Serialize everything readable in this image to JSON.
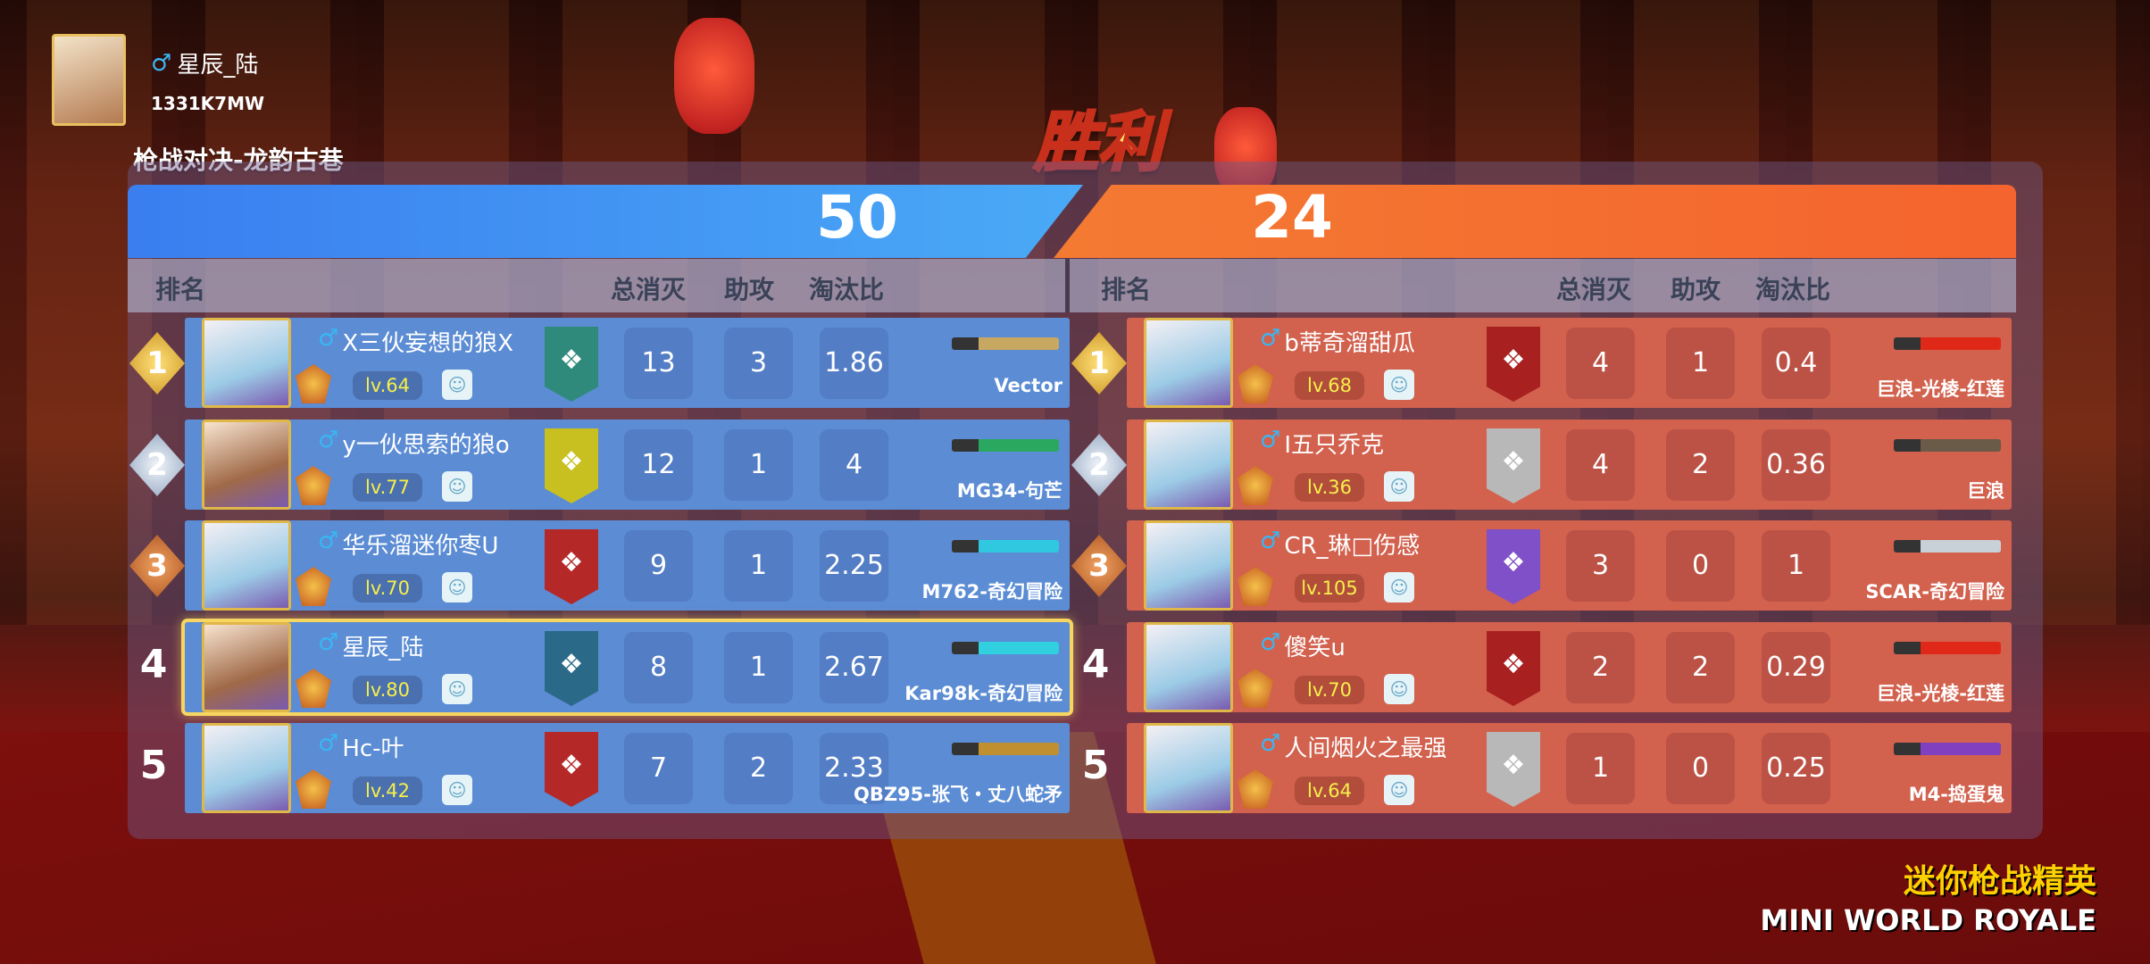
{
  "player": {
    "name": "星辰_陆",
    "gender_icon": "male-icon",
    "id": "1331K7MW"
  },
  "mode": "枪战对决-龙韵古巷",
  "result": "胜利",
  "scores": {
    "blue": "50",
    "orange": "24"
  },
  "headers": {
    "rank": "排名",
    "kills": "总消灭",
    "assists": "助攻",
    "ratio": "淘汰比"
  },
  "colors": {
    "blue_team": "#5b8cd4",
    "red_team": "#d2614e",
    "highlight": "#f6d560",
    "level_text": "#f6f04a"
  },
  "blue_team": [
    {
      "rank": "1",
      "name": "X三伙妄想的狼X",
      "level": "lv.64",
      "kills": "13",
      "assists": "3",
      "ratio": "1.86",
      "weapon": "Vector",
      "emblem_color": "#2f8a7c",
      "gun_color": "#c8a860"
    },
    {
      "rank": "2",
      "name": "y一伙思索的狼o",
      "level": "lv.77",
      "kills": "12",
      "assists": "1",
      "ratio": "4",
      "weapon": "MG34-句芒",
      "emblem_color": "#c8c020",
      "gun_color": "#2aa860"
    },
    {
      "rank": "3",
      "name": "华乐溜迷你枣U",
      "level": "lv.70",
      "kills": "9",
      "assists": "1",
      "ratio": "2.25",
      "weapon": "M762-奇幻冒险",
      "emblem_color": "#b42828",
      "gun_color": "#30c8e0"
    },
    {
      "rank": "4",
      "name": "星辰_陆",
      "level": "lv.80",
      "kills": "8",
      "assists": "1",
      "ratio": "2.67",
      "weapon": "Kar98k-奇幻冒险",
      "emblem_color": "#2a6a88",
      "gun_color": "#30d0e0",
      "self": true
    },
    {
      "rank": "5",
      "name": "Hc-叶",
      "level": "lv.42",
      "kills": "7",
      "assists": "2",
      "ratio": "2.33",
      "weapon": "QBZ95-张飞・丈八蛇矛",
      "emblem_color": "#b42828",
      "gun_color": "#c09030"
    }
  ],
  "red_team": [
    {
      "rank": "1",
      "name": "b蒂奇溜甜瓜",
      "level": "lv.68",
      "kills": "4",
      "assists": "1",
      "ratio": "0.4",
      "weapon": "巨浪-光棱-红莲",
      "emblem_color": "#a82020",
      "gun_color": "#e02818"
    },
    {
      "rank": "2",
      "name": "I五只乔克",
      "level": "lv.36",
      "kills": "4",
      "assists": "2",
      "ratio": "0.36",
      "weapon": "巨浪",
      "emblem_color": "#b8b8b8",
      "gun_color": "#6a5a48"
    },
    {
      "rank": "3",
      "name": "CR_琳□伤感",
      "level": "lv.105",
      "kills": "3",
      "assists": "0",
      "ratio": "1",
      "weapon": "SCAR-奇幻冒险",
      "emblem_color": "#8050c8",
      "gun_color": "#c8d0d8"
    },
    {
      "rank": "4",
      "name": "傻笑u",
      "level": "lv.70",
      "kills": "2",
      "assists": "2",
      "ratio": "0.29",
      "weapon": "巨浪-光棱-红莲",
      "emblem_color": "#a82020",
      "gun_color": "#e02818"
    },
    {
      "rank": "5",
      "name": "人间烟火之最强",
      "level": "lv.64",
      "kills": "1",
      "assists": "0",
      "ratio": "0.25",
      "weapon": "M4-捣蛋鬼",
      "emblem_color": "#b8b8b8",
      "gun_color": "#8040c0"
    }
  ],
  "brand": {
    "cn": "迷你枪战精英",
    "en": "MINI WORLD ROYALE"
  }
}
